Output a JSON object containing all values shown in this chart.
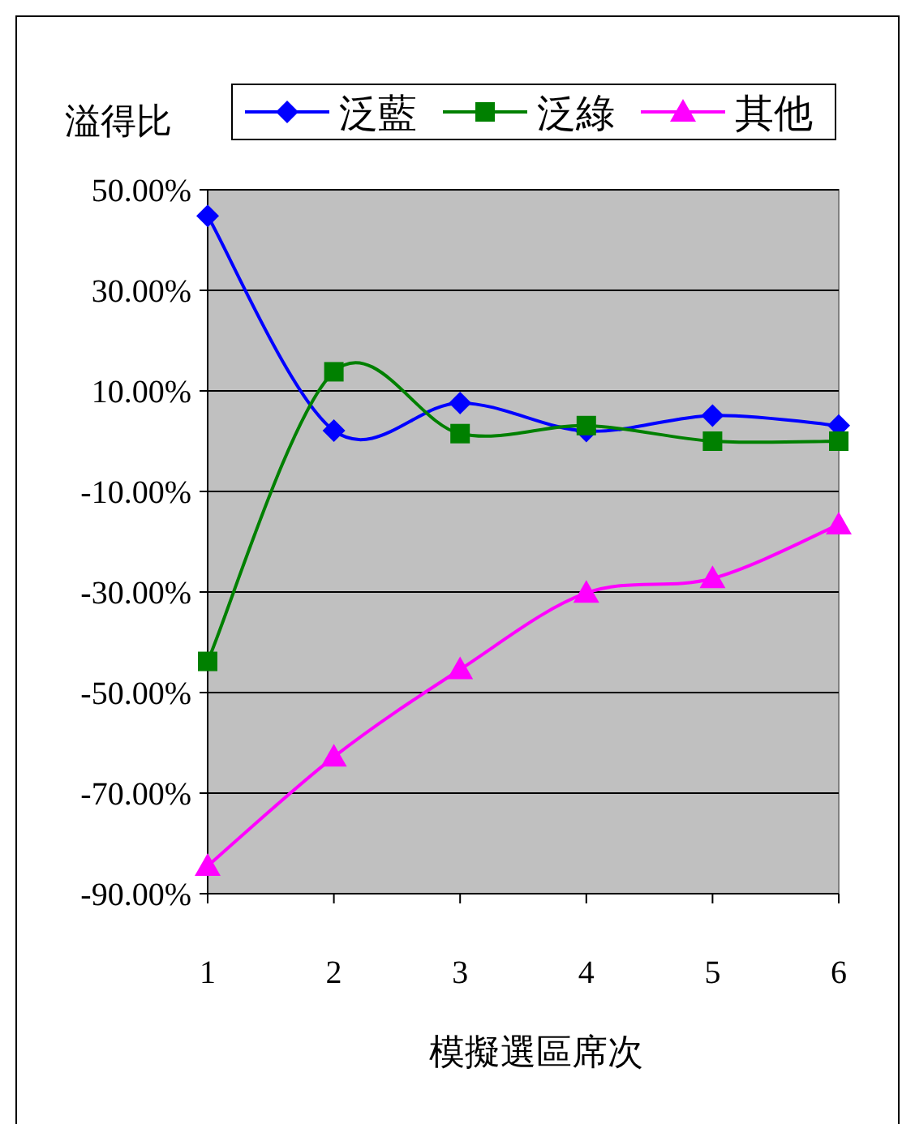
{
  "chart_data": {
    "type": "line",
    "ylabel": "溢得比",
    "xlabel": "模擬選區席次",
    "categories": [
      "1",
      "2",
      "3",
      "4",
      "5",
      "6"
    ],
    "series": [
      {
        "name": "泛藍",
        "color": "#0000ff",
        "marker": "diamond",
        "values": [
          44.8,
          2.1,
          7.6,
          2.0,
          5.1,
          3.1
        ]
      },
      {
        "name": "泛綠",
        "color": "#008000",
        "marker": "square",
        "values": [
          -43.8,
          13.8,
          1.5,
          3.1,
          0,
          0
        ]
      },
      {
        "name": "其他",
        "color": "#ff00ff",
        "marker": "triangle",
        "values": [
          -84.5,
          -62.8,
          -45.4,
          -30.2,
          -27.3,
          -16.6
        ]
      }
    ],
    "ylim": [
      -90,
      50
    ],
    "yticks": [
      {
        "value": -90,
        "label": "-90.00%"
      },
      {
        "value": -70,
        "label": "-70.00%"
      },
      {
        "value": -50,
        "label": "-50.00%"
      },
      {
        "value": -30,
        "label": "-30.00%"
      },
      {
        "value": -10,
        "label": "-10.00%"
      },
      {
        "value": 10,
        "label": "10.00%"
      },
      {
        "value": 30,
        "label": "30.00%"
      },
      {
        "value": 50,
        "label": "50.00%"
      }
    ],
    "grid": "y",
    "legend": "top",
    "line_style": "solid"
  }
}
